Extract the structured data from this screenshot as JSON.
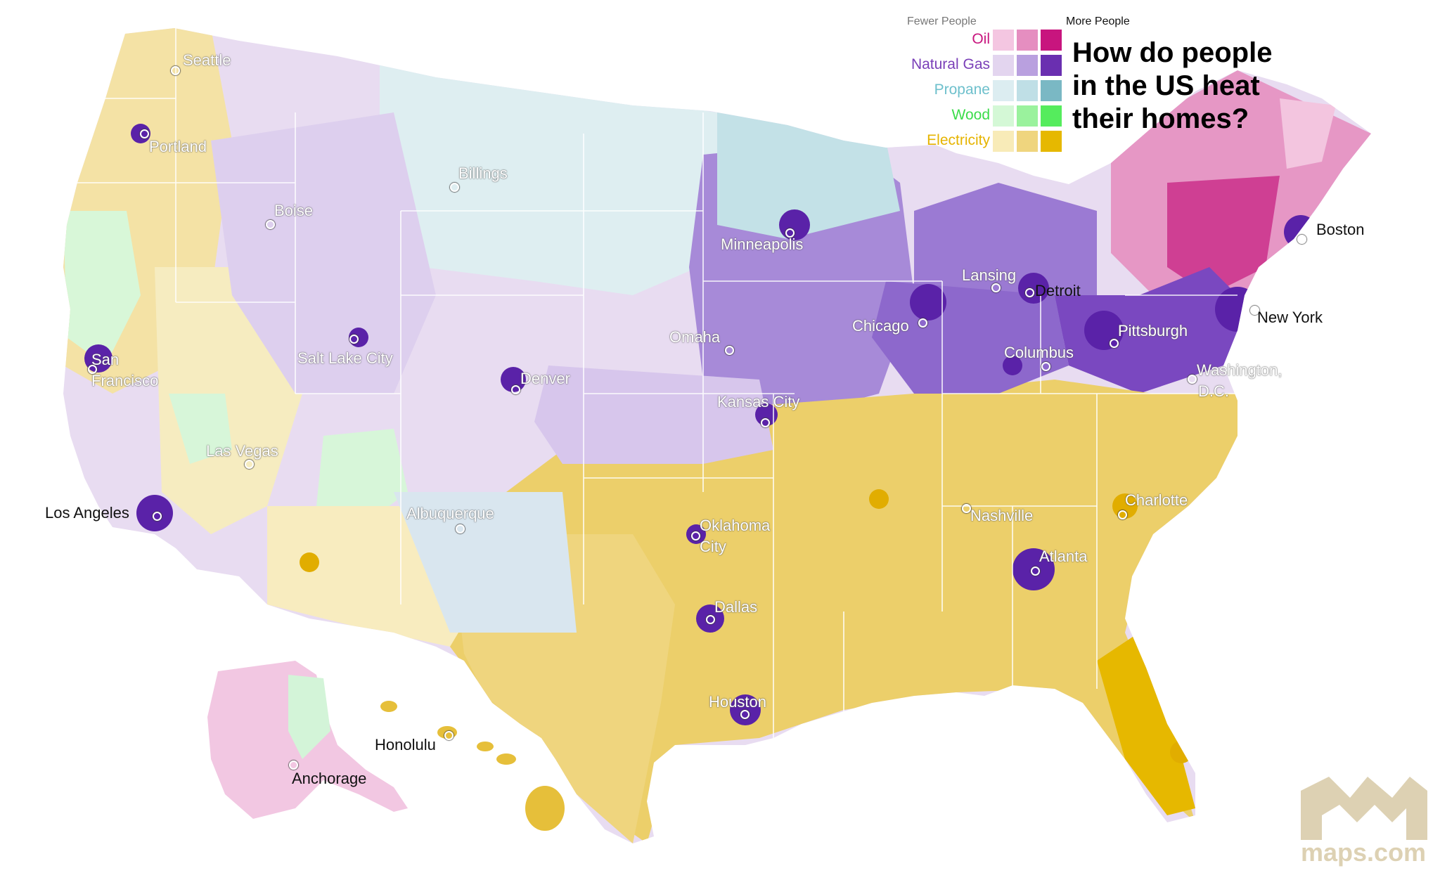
{
  "title_lines": [
    "How do people",
    "in the US heat",
    "their homes?"
  ],
  "legend": {
    "fewer_label": "Fewer People",
    "more_label": "More People",
    "categories": [
      {
        "label": "Oil",
        "label_color": "#c8157e",
        "swatches": [
          "#f4c6e1",
          "#e58ec0",
          "#c8157e"
        ]
      },
      {
        "label": "Natural Gas",
        "label_color": "#7a3fb8",
        "swatches": [
          "#e3d5ef",
          "#b9a0df",
          "#6a2fb0"
        ]
      },
      {
        "label": "Propane",
        "label_color": "#6ec0cc",
        "swatches": [
          "#dcedf1",
          "#bfdfe6",
          "#7ab8c4"
        ]
      },
      {
        "label": "Wood",
        "label_color": "#3bdc4a",
        "swatches": [
          "#d4f8d6",
          "#9af29d",
          "#55ec5d"
        ]
      },
      {
        "label": "Electricity",
        "label_color": "#e6b400",
        "swatches": [
          "#f8ebb8",
          "#efd57e",
          "#e6b800"
        ]
      }
    ]
  },
  "cities": [
    {
      "name": "Seattle",
      "style": "light"
    },
    {
      "name": "Portland",
      "style": "light"
    },
    {
      "name": "Boise",
      "style": "light"
    },
    {
      "name": "Billings",
      "style": "light"
    },
    {
      "name": "Minneapolis",
      "style": "light"
    },
    {
      "name": "Lansing",
      "style": "light"
    },
    {
      "name": "Detroit",
      "style": "dark"
    },
    {
      "name": "Boston",
      "style": "dark"
    },
    {
      "name": "New York",
      "style": "dark"
    },
    {
      "name": "Pittsburgh",
      "style": "light"
    },
    {
      "name": "Chicago",
      "style": "light"
    },
    {
      "name": "Columbus",
      "style": "light"
    },
    {
      "name": "Washington,",
      "style": "light"
    },
    {
      "name": "D.C.",
      "style": "light"
    },
    {
      "name": "Omaha",
      "style": "light"
    },
    {
      "name": "Salt Lake City",
      "style": "light"
    },
    {
      "name": "San",
      "style": "light"
    },
    {
      "name": "Francisco",
      "style": "light"
    },
    {
      "name": "Denver",
      "style": "light"
    },
    {
      "name": "Kansas City",
      "style": "light"
    },
    {
      "name": "Las Vegas",
      "style": "light"
    },
    {
      "name": "Los Angeles",
      "style": "dark"
    },
    {
      "name": "Albuquerque",
      "style": "light"
    },
    {
      "name": "Oklahoma",
      "style": "light"
    },
    {
      "name": "City",
      "style": "light"
    },
    {
      "name": "Nashville",
      "style": "light"
    },
    {
      "name": "Charlotte",
      "style": "light"
    },
    {
      "name": "Atlanta",
      "style": "light"
    },
    {
      "name": "Dallas",
      "style": "light"
    },
    {
      "name": "Houston",
      "style": "light"
    },
    {
      "name": "Honolulu",
      "style": "dark"
    },
    {
      "name": "Anchorage",
      "style": "dark"
    }
  ],
  "logo_text": "maps.com"
}
